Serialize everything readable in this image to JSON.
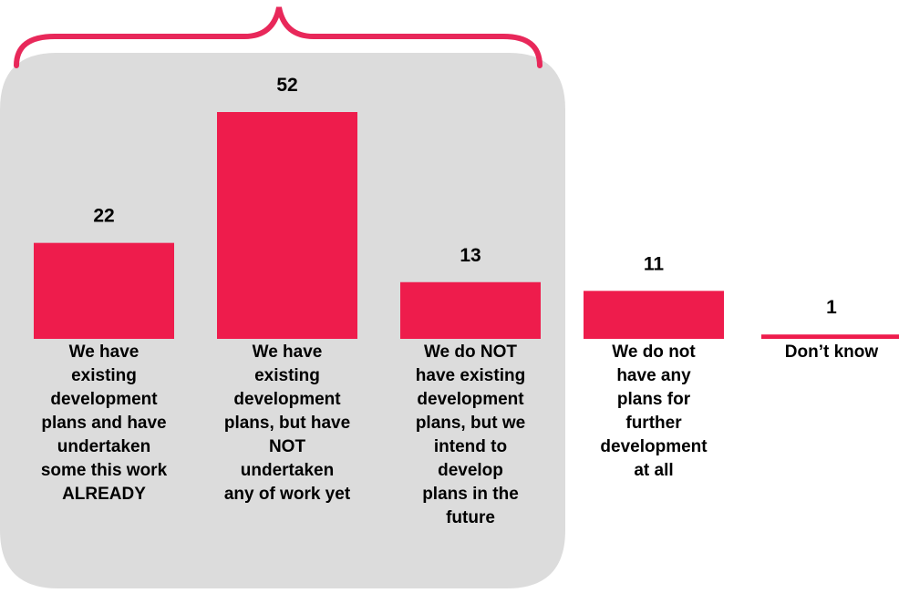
{
  "chart_data": {
    "type": "bar",
    "title": "",
    "xlabel": "",
    "ylabel": "",
    "categories": [
      "We have existing development plans and have undertaken some this work ALREADY",
      "We have existing development plans, but have NOT undertaken any of work yet",
      "We do NOT have existing development plans, but we intend to develop plans in the future",
      "We do not have any plans for further development at all",
      "Don’t know"
    ],
    "category_lines": [
      [
        "We have",
        "existing",
        "development",
        "plans and have",
        "undertaken",
        "some this work",
        "ALREADY"
      ],
      [
        "We have",
        "existing",
        "development",
        "plans, but have",
        "NOT",
        "undertaken",
        "any of work yet"
      ],
      [
        "We do NOT",
        "have existing",
        "development",
        "plans, but we",
        "intend to",
        "develop",
        "plans in the",
        "future"
      ],
      [
        "We do not",
        "have any",
        "plans for",
        "further",
        "development",
        "at all"
      ],
      [
        "Don’t know"
      ]
    ],
    "values": [
      22,
      52,
      13,
      11,
      1
    ],
    "value_labels": [
      "22",
      "52",
      "13",
      "11",
      "1"
    ],
    "ylim": [
      0,
      52
    ],
    "grid": false,
    "legend": "none",
    "highlight_group": {
      "categories": [
        0,
        1,
        2
      ],
      "style": "grey rounded panel with brace above"
    },
    "colors": {
      "bar": "#ee1c4c",
      "panel": "#dcdcdc",
      "brace": "#e8285a",
      "text": "#000000"
    }
  }
}
